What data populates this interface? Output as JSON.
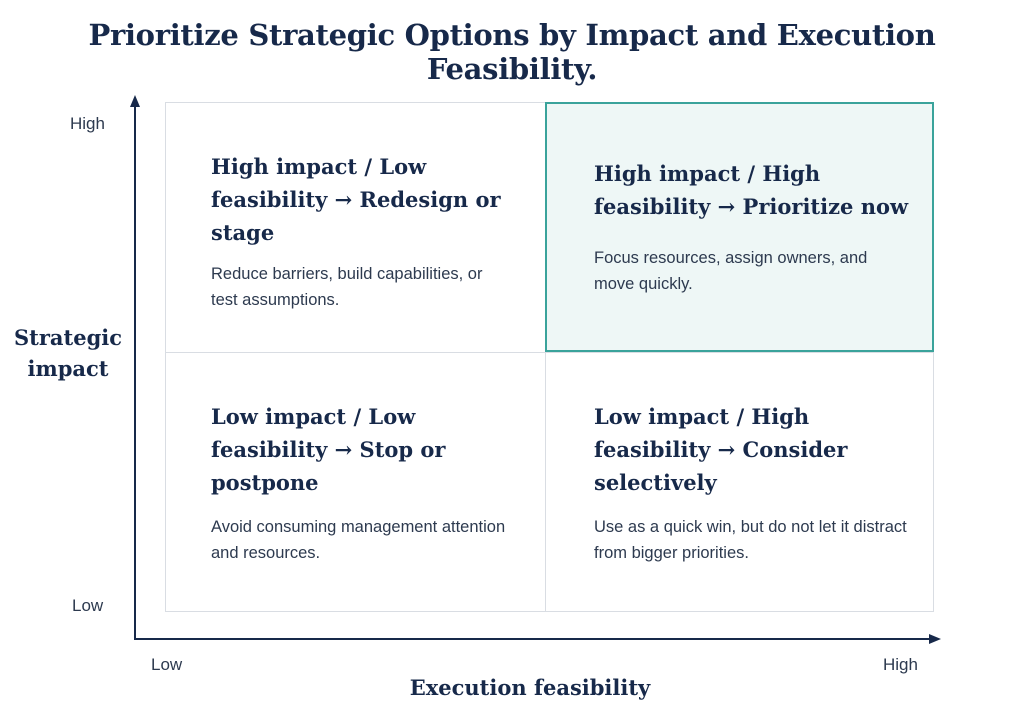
{
  "title": "Prioritize Strategic Options by Impact and Execution Feasibility.",
  "axes": {
    "y": {
      "title": "Strategic impact",
      "high_label": "High",
      "low_label": "Low"
    },
    "x": {
      "title": "Execution feasibility",
      "high_label": "High",
      "low_label": "Low"
    }
  },
  "quadrants": {
    "top_left": {
      "heading": "High impact / Low feasibility → Redesign or stage",
      "body": "Reduce barriers, build capabilities, or test assumptions."
    },
    "top_right": {
      "heading": "High impact / High feasibility → Prioritize now",
      "body": "Focus resources, assign owners, and move quickly."
    },
    "bottom_left": {
      "heading": "Low impact / Low feasibility → Stop or postpone",
      "body": "Avoid consuming management attention and resources."
    },
    "bottom_right": {
      "heading": "Low impact / High feasibility → Consider selectively",
      "body": "Use as a quick win, but do not let it distract from bigger priorities."
    }
  },
  "colors": {
    "text": "#17294a",
    "highlight_border": "#3aa39b",
    "highlight_fill": "#eef7f6",
    "grid_border": "#d9dde3"
  }
}
